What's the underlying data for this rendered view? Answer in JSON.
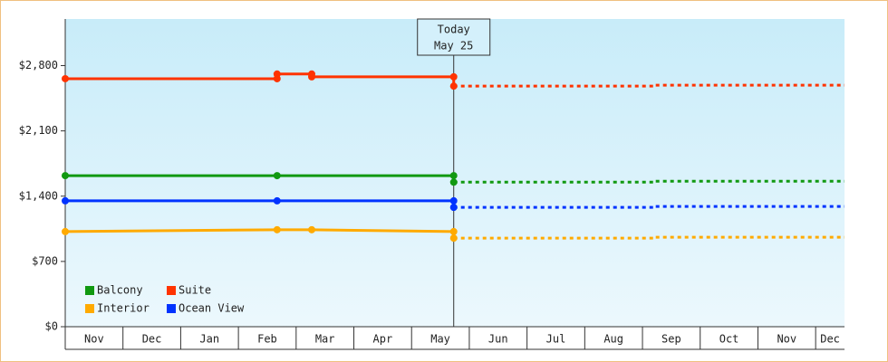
{
  "chart_data": {
    "type": "line",
    "categories": [
      "Nov",
      "Dec",
      "Jan",
      "Feb",
      "Mar",
      "Apr",
      "May",
      "Jun",
      "Jul",
      "Aug",
      "Sep",
      "Oct",
      "Nov",
      "Dec"
    ],
    "xlim": [
      0,
      13.5
    ],
    "ylim": [
      0,
      3300
    ],
    "yticks": [
      {
        "value": 0,
        "label": "$0"
      },
      {
        "value": 700,
        "label": "$700"
      },
      {
        "value": 1400,
        "label": "$1,400"
      },
      {
        "value": 2100,
        "label": "$2,100"
      },
      {
        "value": 2800,
        "label": "$2,800"
      }
    ],
    "annotation": {
      "x": 6.73,
      "label": "Today",
      "date": "May 25"
    },
    "legend": "bottom-left",
    "series": [
      {
        "name": "Balcony",
        "color": "#119911",
        "x": [
          0,
          3.67,
          6.73,
          6.73
        ],
        "values": [
          1620,
          1620,
          1620,
          1550
        ],
        "forecast_x": [
          6.73,
          10.2,
          10.2,
          13.5
        ],
        "forecast_values": [
          1550,
          1550,
          1560,
          1560
        ]
      },
      {
        "name": "Suite",
        "color": "#ff3300",
        "x": [
          0,
          3.67,
          3.67,
          4.27,
          4.27,
          6.73,
          6.73
        ],
        "values": [
          2660,
          2660,
          2710,
          2710,
          2680,
          2680,
          2580
        ],
        "forecast_x": [
          6.73,
          10.2,
          10.2,
          13.5
        ],
        "forecast_values": [
          2580,
          2580,
          2590,
          2590
        ]
      },
      {
        "name": "Interior",
        "color": "#ffaa00",
        "x": [
          0,
          3.67,
          4.27,
          6.73,
          6.73
        ],
        "values": [
          1020,
          1040,
          1040,
          1020,
          950
        ],
        "forecast_x": [
          6.73,
          10.2,
          10.2,
          13.5
        ],
        "forecast_values": [
          950,
          950,
          960,
          960
        ]
      },
      {
        "name": "Ocean View",
        "color": "#0033ff",
        "x": [
          0,
          3.67,
          6.73,
          6.73
        ],
        "values": [
          1350,
          1350,
          1350,
          1280
        ],
        "forecast_x": [
          6.73,
          10.2,
          10.2,
          13.5
        ],
        "forecast_values": [
          1280,
          1280,
          1290,
          1290
        ]
      }
    ]
  }
}
